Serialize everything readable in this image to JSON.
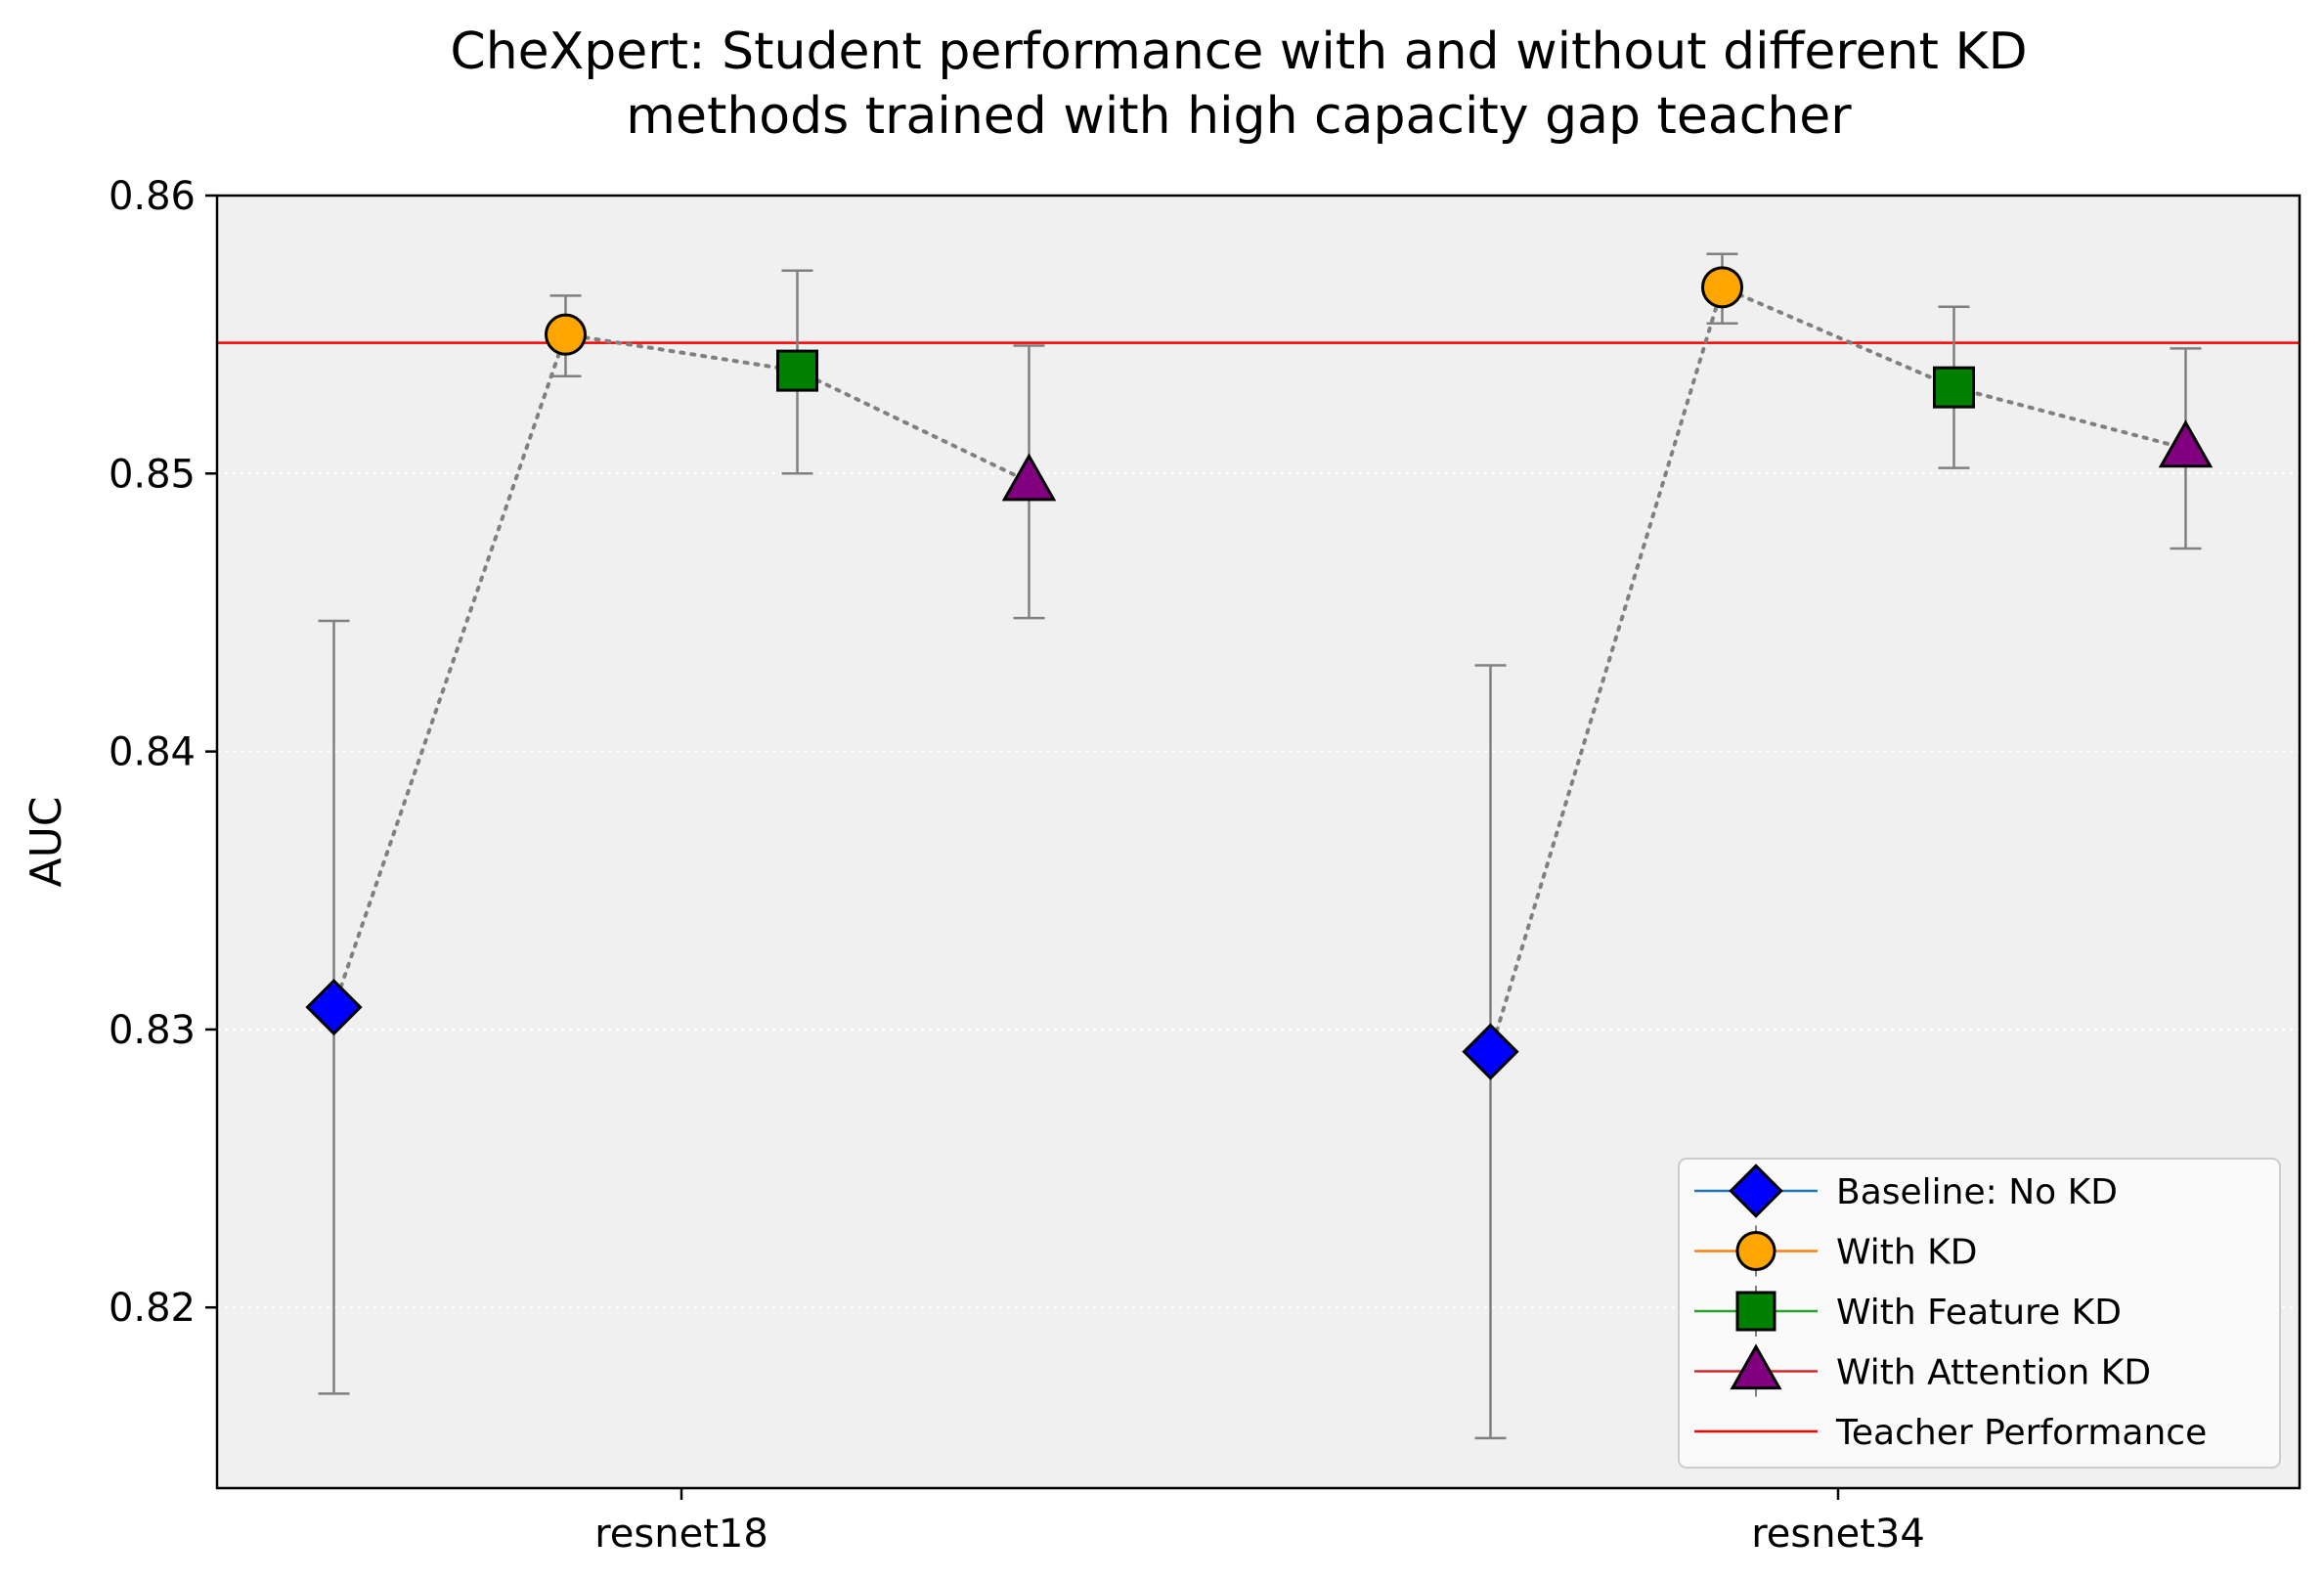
{
  "chart_data": {
    "type": "scatter",
    "title": [
      "CheXpert: Student performance with and without different KD",
      "methods trained with high capacity gap teacher"
    ],
    "xlabel": "",
    "ylabel": "AUC",
    "ylim": [
      0.8135,
      0.86
    ],
    "yticks": [
      0.82,
      0.83,
      0.84,
      0.85,
      0.86
    ],
    "ytick_labels": [
      "0.82",
      "0.83",
      "0.84",
      "0.85",
      "0.86"
    ],
    "categories": [
      "resnet18",
      "resnet34"
    ],
    "grid": "horizontal dotted",
    "background": "#f0f0f0",
    "series": [
      {
        "name": "Baseline: No KD",
        "marker": "diamond",
        "color": "#0000ff",
        "line_color": "#1f77b4",
        "offset": -1.5,
        "values": [
          0.8308,
          0.8292
        ],
        "err_low": [
          0.8169,
          0.8153
        ],
        "err_high": [
          0.8447,
          0.8431
        ]
      },
      {
        "name": "With KD",
        "marker": "circle",
        "color": "#ffa500",
        "line_color": "#ff7f0e",
        "offset": -0.5,
        "values": [
          0.855,
          0.8567
        ],
        "err_low": [
          0.8535,
          0.8554
        ],
        "err_high": [
          0.8564,
          0.8579
        ]
      },
      {
        "name": "With Feature KD",
        "marker": "square",
        "color": "#008000",
        "line_color": "#2ca02c",
        "offset": 0.5,
        "values": [
          0.8537,
          0.8531
        ],
        "err_low": [
          0.85,
          0.8502
        ],
        "err_high": [
          0.8573,
          0.856
        ]
      },
      {
        "name": "With Attention KD",
        "marker": "triangle",
        "color": "#800080",
        "line_color": "#d62728",
        "offset": 1.5,
        "values": [
          0.8497,
          0.8509
        ],
        "err_low": [
          0.8448,
          0.8473
        ],
        "err_high": [
          0.8546,
          0.8545
        ]
      }
    ],
    "teacher": {
      "name": "Teacher Performance",
      "value": 0.8547,
      "color": "#ff0000"
    },
    "legend_position": "lower-right"
  }
}
